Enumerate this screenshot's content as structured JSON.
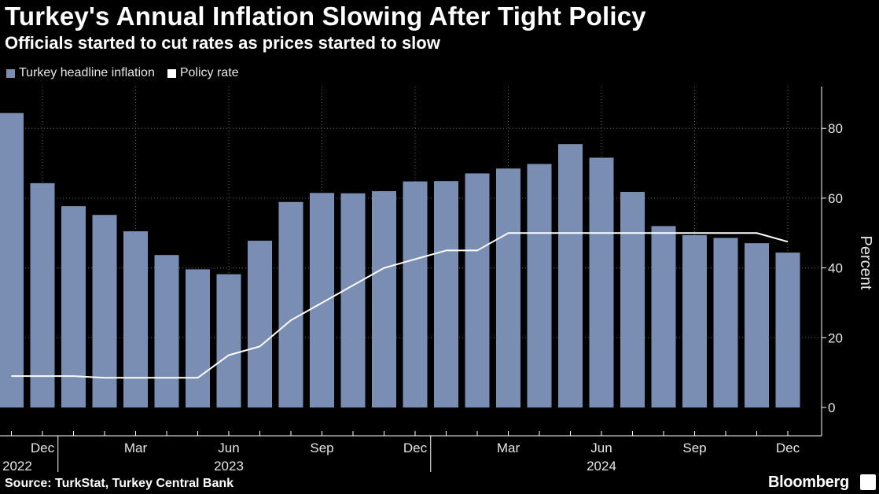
{
  "title": "Turkey's Annual Inflation Slowing After Tight Policy",
  "subtitle": "Officials started to cut rates as prices started to slow",
  "legend": [
    {
      "label": "Turkey headline inflation",
      "color": "#7a8db3"
    },
    {
      "label": "Policy rate",
      "color": "#ffffff"
    }
  ],
  "source": "Source: TurkStat, Turkey Central Bank",
  "brand": "Bloomberg",
  "chart_data": {
    "type": "bar",
    "categories": [
      "2022-11",
      "2022-12",
      "2023-01",
      "2023-02",
      "2023-03",
      "2023-04",
      "2023-05",
      "2023-06",
      "2023-07",
      "2023-08",
      "2023-09",
      "2023-10",
      "2023-11",
      "2023-12",
      "2024-01",
      "2024-02",
      "2024-03",
      "2024-04",
      "2024-05",
      "2024-06",
      "2024-07",
      "2024-08",
      "2024-09",
      "2024-10",
      "2024-11",
      "2024-12"
    ],
    "series": [
      {
        "name": "Turkey headline inflation",
        "type": "bar",
        "color": "#7a8db3",
        "values": [
          84.4,
          64.3,
          57.7,
          55.2,
          50.5,
          43.7,
          39.6,
          38.2,
          47.8,
          58.9,
          61.5,
          61.4,
          62.0,
          64.8,
          64.9,
          67.1,
          68.5,
          69.8,
          75.5,
          71.6,
          61.8,
          52.0,
          49.4,
          48.6,
          47.1,
          44.4
        ]
      },
      {
        "name": "Policy rate",
        "type": "line",
        "color": "#ffffff",
        "values": [
          9.0,
          9.0,
          9.0,
          8.5,
          8.5,
          8.5,
          8.5,
          15.0,
          17.5,
          25.0,
          30.0,
          35.0,
          40.0,
          42.5,
          45.0,
          45.0,
          50.0,
          50.0,
          50.0,
          50.0,
          50.0,
          50.0,
          50.0,
          50.0,
          50.0,
          47.5
        ]
      }
    ],
    "x_ticks": [
      {
        "index": 1,
        "label": "Dec"
      },
      {
        "index": 4,
        "label": "Mar"
      },
      {
        "index": 7,
        "label": "Jun"
      },
      {
        "index": 10,
        "label": "Sep"
      },
      {
        "index": 13,
        "label": "Dec"
      },
      {
        "index": 16,
        "label": "Mar"
      },
      {
        "index": 19,
        "label": "Jun"
      },
      {
        "index": 22,
        "label": "Sep"
      },
      {
        "index": 25,
        "label": "Dec"
      }
    ],
    "year_labels": [
      {
        "index": 0,
        "label": "2022"
      },
      {
        "index": 7,
        "label": "2023"
      },
      {
        "index": 19,
        "label": "2024"
      }
    ],
    "ylabel": "Percent",
    "ylim": [
      0,
      92
    ],
    "y_ticks": [
      0,
      20,
      40,
      60,
      80
    ],
    "grid": true,
    "legend_position": "top-left"
  }
}
